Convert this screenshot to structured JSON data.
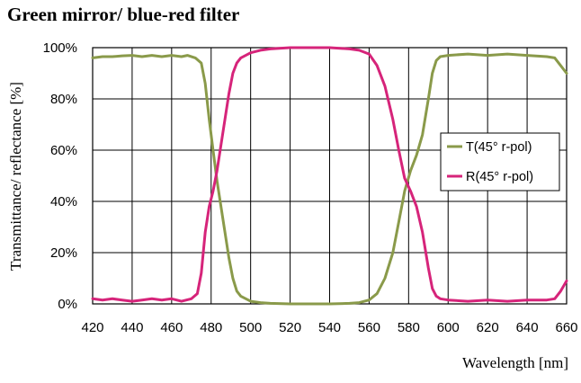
{
  "chart_data": {
    "type": "line",
    "title": "Green mirror/ blue-red filter",
    "xlabel": "Wavelength [nm]",
    "ylabel": "Transmittance/ reflectance [%]",
    "xlim": [
      420,
      660
    ],
    "ylim": [
      0,
      100
    ],
    "x_ticks": [
      "420",
      "440",
      "460",
      "480",
      "500",
      "520",
      "540",
      "560",
      "580",
      "600",
      "620",
      "640",
      "660"
    ],
    "y_ticks": [
      "0%",
      "20%",
      "40%",
      "60%",
      "80%",
      "100%"
    ],
    "grid": true,
    "legend_position": "right",
    "series": [
      {
        "name": "T(45° r-pol)",
        "color": "#8a9a4a",
        "points": [
          [
            420,
            96
          ],
          [
            425,
            96.5
          ],
          [
            430,
            96.5
          ],
          [
            435,
            96.8
          ],
          [
            440,
            97
          ],
          [
            445,
            96.5
          ],
          [
            450,
            97
          ],
          [
            455,
            96.5
          ],
          [
            460,
            97
          ],
          [
            465,
            96.5
          ],
          [
            468,
            97
          ],
          [
            472,
            96
          ],
          [
            475,
            94
          ],
          [
            477,
            86
          ],
          [
            479,
            72
          ],
          [
            481,
            60
          ],
          [
            483,
            48
          ],
          [
            485,
            38
          ],
          [
            487,
            28
          ],
          [
            489,
            18
          ],
          [
            491,
            10
          ],
          [
            493,
            5
          ],
          [
            495,
            3
          ],
          [
            500,
            1
          ],
          [
            505,
            0.5
          ],
          [
            510,
            0.2
          ],
          [
            520,
            0
          ],
          [
            530,
            0
          ],
          [
            540,
            0
          ],
          [
            550,
            0.2
          ],
          [
            555,
            0.5
          ],
          [
            560,
            1.5
          ],
          [
            564,
            4
          ],
          [
            568,
            10
          ],
          [
            572,
            20
          ],
          [
            575,
            32
          ],
          [
            578,
            44
          ],
          [
            581,
            52
          ],
          [
            584,
            58
          ],
          [
            587,
            66
          ],
          [
            590,
            80
          ],
          [
            592,
            90
          ],
          [
            594,
            95
          ],
          [
            596,
            96.5
          ],
          [
            600,
            97
          ],
          [
            610,
            97.5
          ],
          [
            620,
            97
          ],
          [
            630,
            97.5
          ],
          [
            640,
            97
          ],
          [
            650,
            96.5
          ],
          [
            654,
            96
          ],
          [
            657,
            93
          ],
          [
            660,
            90
          ]
        ]
      },
      {
        "name": "R(45° r-pol)",
        "color": "#d6247a",
        "points": [
          [
            420,
            2
          ],
          [
            425,
            1.5
          ],
          [
            430,
            2
          ],
          [
            435,
            1.5
          ],
          [
            440,
            1
          ],
          [
            445,
            1.5
          ],
          [
            450,
            2
          ],
          [
            455,
            1.5
          ],
          [
            460,
            2
          ],
          [
            465,
            1
          ],
          [
            470,
            2
          ],
          [
            473,
            4
          ],
          [
            475,
            12
          ],
          [
            477,
            28
          ],
          [
            479,
            38
          ],
          [
            481,
            44
          ],
          [
            483,
            52
          ],
          [
            485,
            62
          ],
          [
            487,
            72
          ],
          [
            489,
            82
          ],
          [
            491,
            90
          ],
          [
            493,
            94
          ],
          [
            495,
            96
          ],
          [
            500,
            98
          ],
          [
            505,
            99
          ],
          [
            510,
            99.5
          ],
          [
            520,
            100
          ],
          [
            530,
            100
          ],
          [
            540,
            100
          ],
          [
            550,
            99.5
          ],
          [
            555,
            99
          ],
          [
            560,
            97.5
          ],
          [
            564,
            93
          ],
          [
            568,
            85
          ],
          [
            572,
            72
          ],
          [
            575,
            60
          ],
          [
            578,
            49
          ],
          [
            581,
            44
          ],
          [
            584,
            38
          ],
          [
            587,
            28
          ],
          [
            590,
            14
          ],
          [
            592,
            6
          ],
          [
            594,
            3
          ],
          [
            596,
            2
          ],
          [
            600,
            1.5
          ],
          [
            610,
            1
          ],
          [
            620,
            1.5
          ],
          [
            630,
            1
          ],
          [
            640,
            1.5
          ],
          [
            650,
            1.5
          ],
          [
            654,
            2
          ],
          [
            657,
            5
          ],
          [
            660,
            9
          ]
        ]
      }
    ]
  }
}
